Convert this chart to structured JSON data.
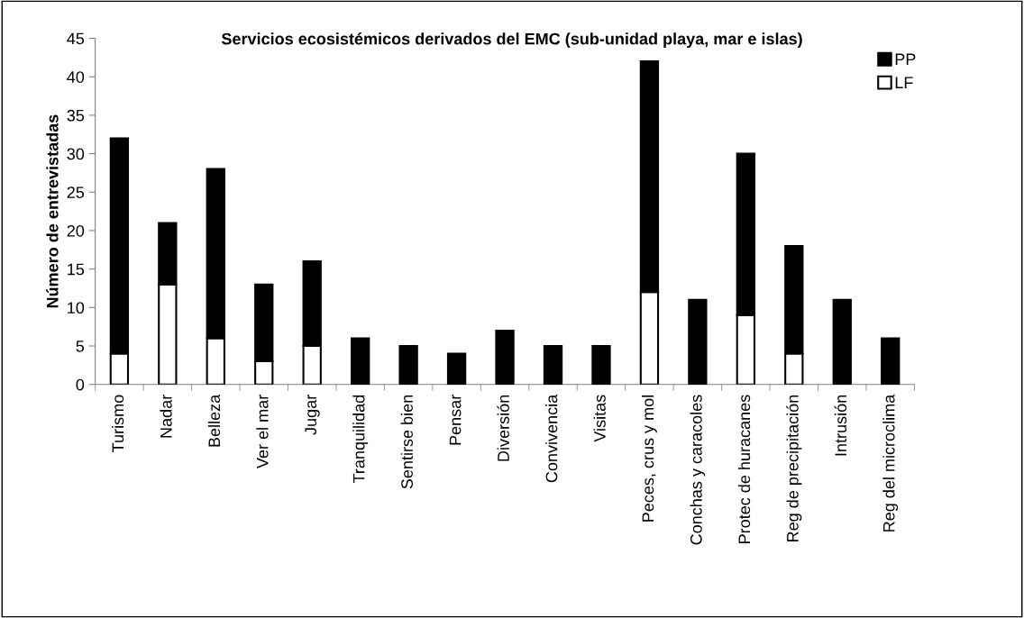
{
  "chart_data": {
    "type": "bar",
    "title": "Servicios ecosistémicos derivados del EMC (sub-unidad playa, mar e islas)",
    "ylabel": "Número de entrevistadas",
    "categories": [
      "Turismo",
      "Nadar",
      "Belleza",
      "Ver el mar",
      "Jugar",
      "Tranquilidad",
      "Sentirse bien",
      "Pensar",
      "Diversión",
      "Convivencia",
      "Visitas",
      "Peces, crus y mol",
      "Conchas y caracoles",
      "Protec de huracanes",
      "Reg de precipitación",
      "Intrusión",
      "Reg del microclima"
    ],
    "stacked": true,
    "series": [
      {
        "name": "LF",
        "color": "#ffffff",
        "values": [
          4,
          13,
          6,
          3,
          5,
          0,
          0,
          0,
          0,
          0,
          0,
          12,
          0,
          9,
          4,
          0,
          0
        ]
      },
      {
        "name": "PP",
        "color": "#000000",
        "values": [
          28,
          8,
          22,
          10,
          11,
          6,
          5,
          4,
          7,
          5,
          5,
          30,
          11,
          21,
          14,
          11,
          6
        ]
      }
    ],
    "ylim": [
      0,
      45
    ],
    "yticks": [
      0,
      5,
      10,
      15,
      20,
      25,
      30,
      35,
      40,
      45
    ],
    "grid": false,
    "legend": "top right"
  }
}
